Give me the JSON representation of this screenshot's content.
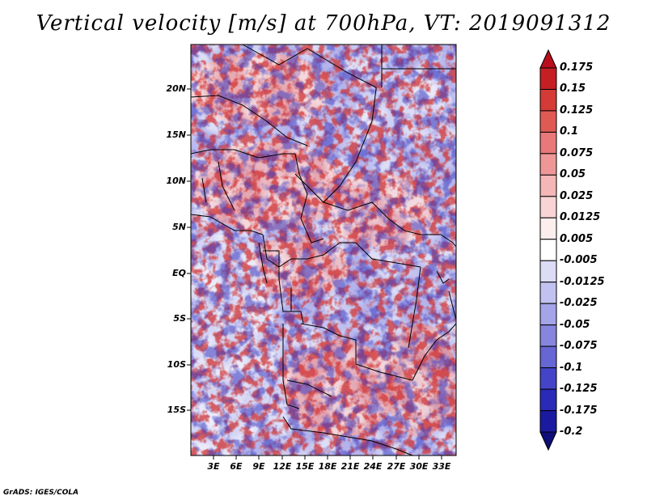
{
  "title": "Vertical velocity [m/s] at 700hPa, VT: 2019091312",
  "footer": "GrADS: IGES/COLA",
  "map": {
    "lat_labels": [
      "20N",
      "15N",
      "10N",
      "5N",
      "EQ",
      "5S",
      "10S",
      "15S"
    ],
    "lon_labels": [
      "3E",
      "6E",
      "9E",
      "12E",
      "15E",
      "18E",
      "21E",
      "24E",
      "27E",
      "30E",
      "33E"
    ]
  },
  "legend": {
    "levels": [
      "0.175",
      "0.15",
      "0.125",
      "0.1",
      "0.075",
      "0.05",
      "0.025",
      "0.0125",
      "0.005",
      "-0.005",
      "-0.0125",
      "-0.025",
      "-0.05",
      "-0.075",
      "-0.1",
      "-0.125",
      "-0.175",
      "-0.2"
    ],
    "colors": [
      "#b80e1e",
      "#c51f24",
      "#d43a36",
      "#e05a54",
      "#e8787a",
      "#ef9797",
      "#f4b6b6",
      "#f8d4d4",
      "#fdeeee",
      "#ffffff",
      "#dcdcf6",
      "#c2c2f0",
      "#a4a4e8",
      "#8686de",
      "#6666d4",
      "#4444c8",
      "#2a2ab8",
      "#1a1aa0",
      "#0e0e78"
    ]
  }
}
